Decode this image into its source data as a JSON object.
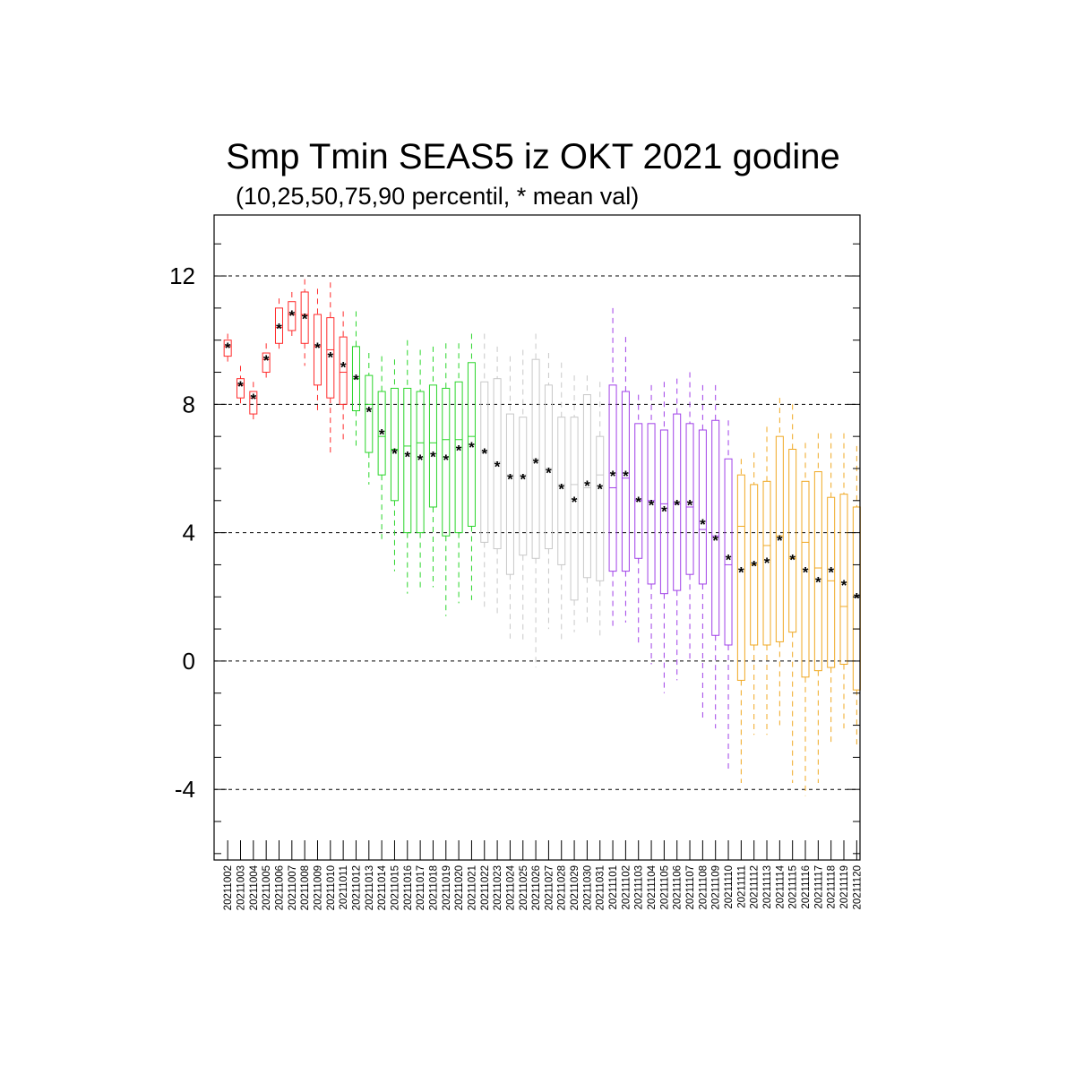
{
  "chart_data": {
    "type": "box",
    "title": "Smp Tmin SEAS5 iz OKT 2021 godine",
    "subtitle": "(10,25,50,75,90 percentil, * mean val)",
    "xlabel": "",
    "ylabel": "",
    "ylim": [
      -6.2,
      13.9
    ],
    "yticks": [
      12,
      8,
      4,
      0,
      -4
    ],
    "ytick_labels": [
      "12",
      "8",
      "4",
      "0",
      "-4"
    ],
    "grid": "horizontal dashed at major ticks",
    "legend": "none",
    "mean_marker": "*",
    "mean_color": "#000066",
    "group_colors": [
      "#ff2a2a",
      "#2ad52a",
      "#c8c8c8",
      "#a040e8",
      "#f0a822"
    ],
    "categories": [
      "20211002",
      "20211003",
      "20211004",
      "20211005",
      "20211006",
      "20211007",
      "20211008",
      "20211009",
      "20211010",
      "20211011",
      "20211012",
      "20211013",
      "20211014",
      "20211015",
      "20211016",
      "20211017",
      "20211018",
      "20211019",
      "20211020",
      "20211021",
      "20211022",
      "20211023",
      "20211024",
      "20211025",
      "20211026",
      "20211027",
      "20211028",
      "20211029",
      "20211030",
      "20211031",
      "20211101",
      "20211102",
      "20211103",
      "20211104",
      "20211105",
      "20211106",
      "20211107",
      "20211108",
      "20211109",
      "20211110",
      "20211111",
      "20211112",
      "20211113",
      "20211114",
      "20211115",
      "20211116",
      "20211117",
      "20211118",
      "20211119",
      "20211120"
    ],
    "boxes": [
      {
        "date": "20211002",
        "p10": 9.2,
        "p25": 9.5,
        "p50": 9.8,
        "p75": 10.0,
        "p90": 10.2,
        "mean": 9.8,
        "group": 0
      },
      {
        "date": "20211003",
        "p10": 7.9,
        "p25": 8.2,
        "p50": 8.6,
        "p75": 8.8,
        "p90": 9.2,
        "mean": 8.6,
        "group": 0
      },
      {
        "date": "20211004",
        "p10": 7.4,
        "p25": 7.7,
        "p50": 8.2,
        "p75": 8.4,
        "p90": 8.7,
        "mean": 8.2,
        "group": 0
      },
      {
        "date": "20211005",
        "p10": 8.7,
        "p25": 9.0,
        "p50": 9.4,
        "p75": 9.6,
        "p90": 9.9,
        "mean": 9.4,
        "group": 0
      },
      {
        "date": "20211006",
        "p10": 9.7,
        "p25": 9.9,
        "p50": 10.4,
        "p75": 11.0,
        "p90": 11.3,
        "mean": 10.4,
        "group": 0
      },
      {
        "date": "20211007",
        "p10": 10.0,
        "p25": 10.3,
        "p50": 10.8,
        "p75": 11.2,
        "p90": 11.5,
        "mean": 10.8,
        "group": 0
      },
      {
        "date": "20211008",
        "p10": 9.2,
        "p25": 9.9,
        "p50": 10.8,
        "p75": 11.5,
        "p90": 11.9,
        "mean": 10.7,
        "group": 0
      },
      {
        "date": "20211009",
        "p10": 7.7,
        "p25": 8.6,
        "p50": 9.8,
        "p75": 10.8,
        "p90": 11.6,
        "mean": 9.8,
        "group": 0
      },
      {
        "date": "20211010",
        "p10": 6.5,
        "p25": 8.2,
        "p50": 9.7,
        "p75": 10.7,
        "p90": 11.8,
        "mean": 9.5,
        "group": 0
      },
      {
        "date": "20211011",
        "p10": 6.8,
        "p25": 8.0,
        "p50": 9.0,
        "p75": 10.1,
        "p90": 10.9,
        "mean": 9.2,
        "group": 0
      },
      {
        "date": "20211012",
        "p10": 6.6,
        "p25": 7.8,
        "p50": 8.8,
        "p75": 9.8,
        "p90": 10.9,
        "mean": 8.8,
        "group": 1
      },
      {
        "date": "20211013",
        "p10": 5.5,
        "p25": 6.5,
        "p50": 8.0,
        "p75": 8.9,
        "p90": 9.6,
        "mean": 7.8,
        "group": 1
      },
      {
        "date": "20211014",
        "p10": 3.8,
        "p25": 5.8,
        "p50": 7.0,
        "p75": 8.4,
        "p90": 9.5,
        "mean": 7.1,
        "group": 1
      },
      {
        "date": "20211015",
        "p10": 2.8,
        "p25": 5.0,
        "p50": 6.6,
        "p75": 8.5,
        "p90": 9.4,
        "mean": 6.5,
        "group": 1
      },
      {
        "date": "20211016",
        "p10": 2.1,
        "p25": 4.0,
        "p50": 6.7,
        "p75": 8.5,
        "p90": 10.0,
        "mean": 6.4,
        "group": 1
      },
      {
        "date": "20211017",
        "p10": 2.2,
        "p25": 4.0,
        "p50": 6.8,
        "p75": 8.4,
        "p90": 9.7,
        "mean": 6.3,
        "group": 1
      },
      {
        "date": "20211018",
        "p10": 2.3,
        "p25": 4.8,
        "p50": 6.8,
        "p75": 8.6,
        "p90": 9.8,
        "mean": 6.4,
        "group": 1
      },
      {
        "date": "20211019",
        "p10": 1.4,
        "p25": 3.9,
        "p50": 6.9,
        "p75": 8.5,
        "p90": 9.9,
        "mean": 6.3,
        "group": 1
      },
      {
        "date": "20211020",
        "p10": 1.8,
        "p25": 4.0,
        "p50": 6.9,
        "p75": 8.7,
        "p90": 9.9,
        "mean": 6.6,
        "group": 1
      },
      {
        "date": "20211021",
        "p10": 1.9,
        "p25": 4.2,
        "p50": 7.0,
        "p75": 9.3,
        "p90": 10.2,
        "mean": 6.7,
        "group": 1
      },
      {
        "date": "20211022",
        "p10": 1.6,
        "p25": 3.7,
        "p50": 6.5,
        "p75": 8.7,
        "p90": 10.2,
        "mean": 6.5,
        "group": 2
      },
      {
        "date": "20211023",
        "p10": 1.4,
        "p25": 3.5,
        "p50": 6.2,
        "p75": 8.8,
        "p90": 9.8,
        "mean": 6.1,
        "group": 2
      },
      {
        "date": "20211024",
        "p10": 0.7,
        "p25": 2.7,
        "p50": 5.8,
        "p75": 7.7,
        "p90": 9.5,
        "mean": 5.7,
        "group": 2
      },
      {
        "date": "20211025",
        "p10": 0.6,
        "p25": 3.3,
        "p50": 5.8,
        "p75": 7.6,
        "p90": 9.7,
        "mean": 5.7,
        "group": 2
      },
      {
        "date": "20211026",
        "p10": -0.2,
        "p25": 3.2,
        "p50": 6.3,
        "p75": 9.4,
        "p90": 10.2,
        "mean": 6.2,
        "group": 2
      },
      {
        "date": "20211027",
        "p10": 1.0,
        "p25": 3.5,
        "p50": 6.0,
        "p75": 8.6,
        "p90": 9.6,
        "mean": 5.9,
        "group": 2
      },
      {
        "date": "20211028",
        "p10": 0.6,
        "p25": 3.0,
        "p50": 5.5,
        "p75": 7.6,
        "p90": 9.3,
        "mean": 5.4,
        "group": 2
      },
      {
        "date": "20211029",
        "p10": 0.9,
        "p25": 1.9,
        "p50": 5.5,
        "p75": 7.6,
        "p90": 8.9,
        "mean": 5.0,
        "group": 2
      },
      {
        "date": "20211030",
        "p10": 1.2,
        "p25": 2.6,
        "p50": 5.4,
        "p75": 8.3,
        "p90": 8.9,
        "mean": 5.5,
        "group": 2
      },
      {
        "date": "20211031",
        "p10": 0.7,
        "p25": 2.5,
        "p50": 5.8,
        "p75": 7.0,
        "p90": 8.7,
        "mean": 5.4,
        "group": 2
      },
      {
        "date": "20211101",
        "p10": 1.0,
        "p25": 2.8,
        "p50": 5.4,
        "p75": 8.6,
        "p90": 11.0,
        "mean": 5.8,
        "group": 3
      },
      {
        "date": "20211102",
        "p10": 1.2,
        "p25": 2.8,
        "p50": 5.7,
        "p75": 8.4,
        "p90": 10.1,
        "mean": 5.8,
        "group": 3
      },
      {
        "date": "20211103",
        "p10": 0.5,
        "p25": 3.2,
        "p50": 5.0,
        "p75": 7.4,
        "p90": 8.3,
        "mean": 5.0,
        "group": 3
      },
      {
        "date": "20211104",
        "p10": -0.1,
        "p25": 2.4,
        "p50": 5.0,
        "p75": 7.4,
        "p90": 8.6,
        "mean": 4.9,
        "group": 3
      },
      {
        "date": "20211105",
        "p10": -1.0,
        "p25": 2.1,
        "p50": 4.9,
        "p75": 7.2,
        "p90": 8.7,
        "mean": 4.7,
        "group": 3
      },
      {
        "date": "20211106",
        "p10": -0.6,
        "p25": 2.2,
        "p50": 4.9,
        "p75": 7.7,
        "p90": 8.8,
        "mean": 4.9,
        "group": 3
      },
      {
        "date": "20211107",
        "p10": 0.0,
        "p25": 2.7,
        "p50": 4.8,
        "p75": 7.4,
        "p90": 9.0,
        "mean": 4.9,
        "group": 3
      },
      {
        "date": "20211108",
        "p10": -1.9,
        "p25": 2.4,
        "p50": 4.1,
        "p75": 7.2,
        "p90": 8.6,
        "mean": 4.3,
        "group": 3
      },
      {
        "date": "20211109",
        "p10": -2.1,
        "p25": 0.8,
        "p50": 3.9,
        "p75": 7.5,
        "p90": 8.6,
        "mean": 3.8,
        "group": 3
      },
      {
        "date": "20211110",
        "p10": -3.4,
        "p25": 0.5,
        "p50": 3.0,
        "p75": 6.3,
        "p90": 7.5,
        "mean": 3.2,
        "group": 3
      },
      {
        "date": "20211111",
        "p10": -3.8,
        "p25": -0.6,
        "p50": 4.2,
        "p75": 5.8,
        "p90": 6.3,
        "mean": 2.8,
        "group": 4
      },
      {
        "date": "20211112",
        "p10": -2.3,
        "p25": 0.5,
        "p50": 3.0,
        "p75": 5.5,
        "p90": 6.5,
        "mean": 3.0,
        "group": 4
      },
      {
        "date": "20211113",
        "p10": -2.3,
        "p25": 0.5,
        "p50": 3.6,
        "p75": 5.6,
        "p90": 7.3,
        "mean": 3.1,
        "group": 4
      },
      {
        "date": "20211114",
        "p10": -2.0,
        "p25": 0.6,
        "p50": 3.9,
        "p75": 7.0,
        "p90": 8.2,
        "mean": 3.8,
        "group": 4
      },
      {
        "date": "20211115",
        "p10": -3.8,
        "p25": 0.9,
        "p50": 3.2,
        "p75": 6.6,
        "p90": 8.0,
        "mean": 3.2,
        "group": 4
      },
      {
        "date": "20211116",
        "p10": -4.2,
        "p25": -0.5,
        "p50": 3.7,
        "p75": 5.6,
        "p90": 6.8,
        "mean": 2.8,
        "group": 4
      },
      {
        "date": "20211117",
        "p10": -3.8,
        "p25": -0.3,
        "p50": 2.9,
        "p75": 5.9,
        "p90": 7.1,
        "mean": 2.5,
        "group": 4
      },
      {
        "date": "20211118",
        "p10": -2.6,
        "p25": -0.2,
        "p50": 2.5,
        "p75": 5.1,
        "p90": 7.1,
        "mean": 2.8,
        "group": 4
      },
      {
        "date": "20211119",
        "p10": -2.1,
        "p25": -0.1,
        "p50": 1.7,
        "p75": 5.2,
        "p90": 7.1,
        "mean": 2.4,
        "group": 4
      },
      {
        "date": "20211120",
        "p10": -2.6,
        "p25": -0.9,
        "p50": 1.0,
        "p75": 4.8,
        "p90": 6.7,
        "mean": 2.0,
        "group": 4
      }
    ]
  }
}
